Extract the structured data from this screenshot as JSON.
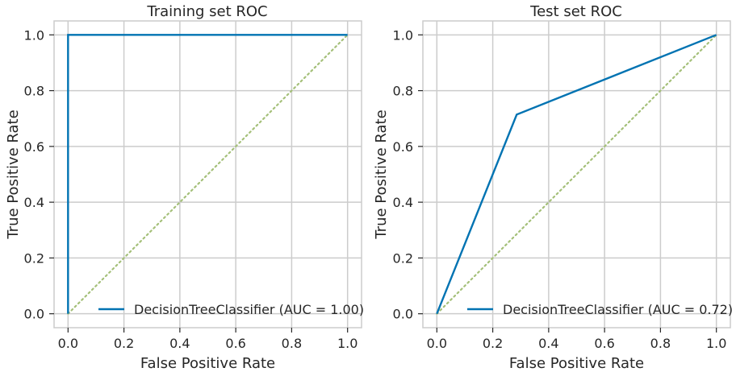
{
  "chart_data": [
    {
      "type": "line",
      "title": "Training set ROC",
      "xlabel": "False Positive Rate",
      "ylabel": "True Positive Rate",
      "xlim": [
        -0.05,
        1.05
      ],
      "ylim": [
        -0.05,
        1.05
      ],
      "xticks": [
        0.0,
        0.2,
        0.4,
        0.6,
        0.8,
        1.0
      ],
      "yticks": [
        0.0,
        0.2,
        0.4,
        0.6,
        0.8,
        1.0
      ],
      "xtick_labels": [
        "0.0",
        "0.2",
        "0.4",
        "0.6",
        "0.8",
        "1.0"
      ],
      "ytick_labels": [
        "0.0",
        "0.2",
        "0.4",
        "0.6",
        "0.8",
        "1.0"
      ],
      "grid": true,
      "legend_position": "lower-right",
      "series": [
        {
          "name": "DecisionTreeClassifier (AUC = 1.00)",
          "color": "#0173b2",
          "style": "solid",
          "x": [
            0.0,
            0.0,
            1.0
          ],
          "y": [
            0.0,
            1.0,
            1.0
          ]
        }
      ],
      "reference_line": {
        "color": "#a5c07a",
        "style": "dotted",
        "x": [
          0.0,
          1.0
        ],
        "y": [
          0.0,
          1.0
        ]
      }
    },
    {
      "type": "line",
      "title": "Test set ROC",
      "xlabel": "False Positive Rate",
      "ylabel": "True Positive Rate",
      "xlim": [
        -0.05,
        1.05
      ],
      "ylim": [
        -0.05,
        1.05
      ],
      "xticks": [
        0.0,
        0.2,
        0.4,
        0.6,
        0.8,
        1.0
      ],
      "yticks": [
        0.0,
        0.2,
        0.4,
        0.6,
        0.8,
        1.0
      ],
      "xtick_labels": [
        "0.0",
        "0.2",
        "0.4",
        "0.6",
        "0.8",
        "1.0"
      ],
      "ytick_labels": [
        "0.0",
        "0.2",
        "0.4",
        "0.6",
        "0.8",
        "1.0"
      ],
      "grid": true,
      "legend_position": "lower-right",
      "series": [
        {
          "name": "DecisionTreeClassifier (AUC = 0.72)",
          "color": "#0173b2",
          "style": "solid",
          "x": [
            0.0,
            0.2857,
            1.0
          ],
          "y": [
            0.0,
            0.7143,
            1.0
          ]
        }
      ],
      "reference_line": {
        "color": "#a5c07a",
        "style": "dotted",
        "x": [
          0.0,
          1.0
        ],
        "y": [
          0.0,
          1.0
        ]
      }
    }
  ]
}
